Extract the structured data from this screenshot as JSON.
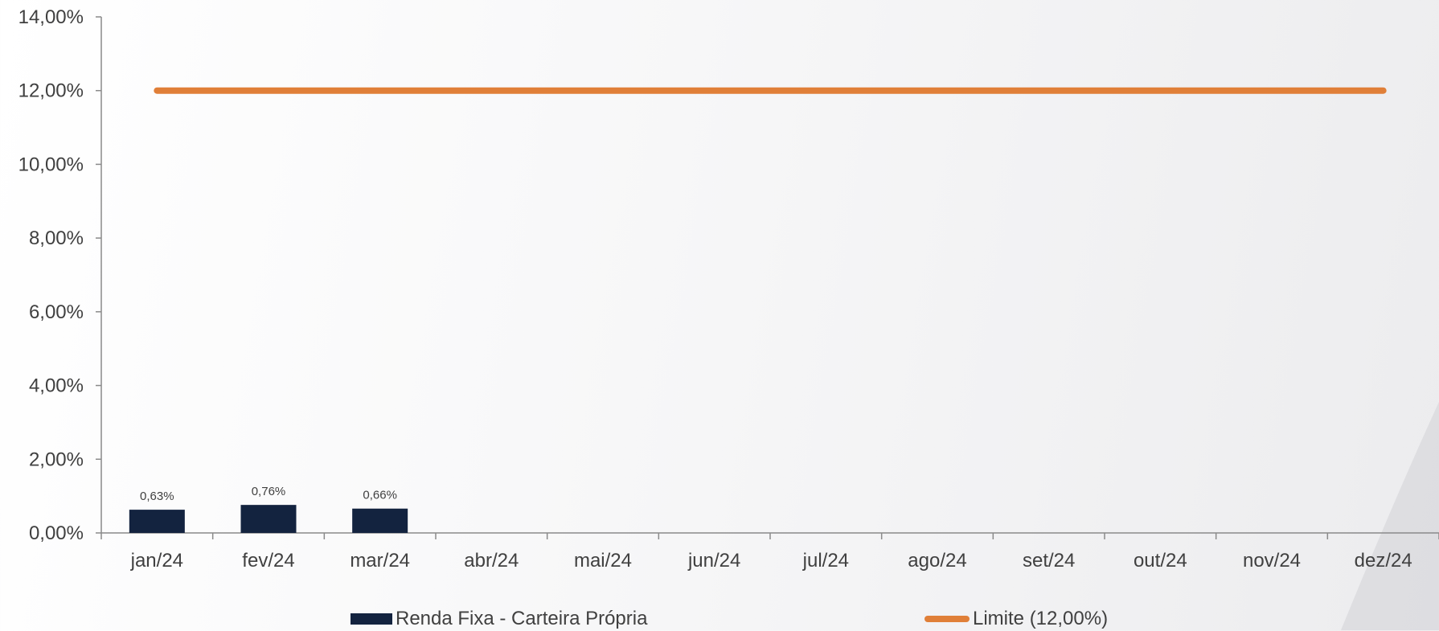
{
  "chart_data": {
    "type": "bar",
    "categories": [
      "jan/24",
      "fev/24",
      "mar/24",
      "abr/24",
      "mai/24",
      "jun/24",
      "jul/24",
      "ago/24",
      "set/24",
      "out/24",
      "nov/24",
      "dez/24"
    ],
    "series": [
      {
        "name": "Renda Fixa - Carteira Própria",
        "type": "bar",
        "color": "#13233f",
        "values": [
          0.63,
          0.76,
          0.66,
          null,
          null,
          null,
          null,
          null,
          null,
          null,
          null,
          null
        ],
        "labels": [
          "0,63%",
          "0,76%",
          "0,66%"
        ]
      },
      {
        "name": "Limite (12,00%)",
        "type": "line",
        "color": "#e07f38",
        "values": [
          12,
          12,
          12,
          12,
          12,
          12,
          12,
          12,
          12,
          12,
          12,
          12
        ]
      }
    ],
    "ylim": [
      0,
      14
    ],
    "yticks": [
      0,
      2,
      4,
      6,
      8,
      10,
      12,
      14
    ],
    "ytick_labels": [
      "0,00%",
      "2,00%",
      "4,00%",
      "6,00%",
      "8,00%",
      "10,00%",
      "12,00%",
      "14,00%"
    ],
    "legend_position": "bottom",
    "grid": false
  }
}
